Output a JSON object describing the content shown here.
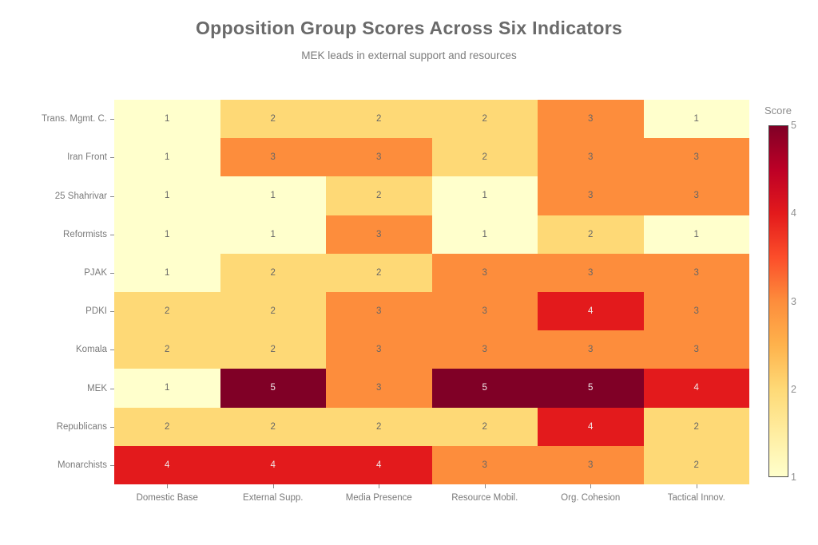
{
  "chart_data": {
    "type": "heatmap",
    "title": "Opposition Group Scores Across Six Indicators",
    "subtitle": "MEK leads in external support and resources",
    "columns": [
      "Domestic Base",
      "External Supp.",
      "Media Presence",
      "Resource Mobil.",
      "Org. Cohesion",
      "Tactical Innov."
    ],
    "rows": [
      "Trans. Mgmt. C.",
      "Iran Front",
      "25 Shahrivar",
      "Reformists",
      "PJAK",
      "PDKI",
      "Komala",
      "MEK",
      "Republicans",
      "Monarchists"
    ],
    "values": [
      [
        1,
        2,
        2,
        2,
        3,
        1
      ],
      [
        1,
        3,
        3,
        2,
        3,
        3
      ],
      [
        1,
        1,
        2,
        1,
        3,
        3
      ],
      [
        1,
        1,
        3,
        1,
        2,
        1
      ],
      [
        1,
        2,
        2,
        3,
        3,
        3
      ],
      [
        2,
        2,
        3,
        3,
        4,
        3
      ],
      [
        2,
        2,
        3,
        3,
        3,
        3
      ],
      [
        1,
        5,
        3,
        5,
        5,
        4
      ],
      [
        2,
        2,
        2,
        2,
        4,
        2
      ],
      [
        4,
        4,
        4,
        3,
        3,
        2
      ]
    ],
    "value_range": [
      1,
      5
    ],
    "grid": false,
    "annotations_shown": true,
    "colorbar": {
      "title": "Score",
      "ticks": [
        1,
        2,
        3,
        4,
        5
      ],
      "min": 1,
      "max": 5,
      "position": "right"
    },
    "score_colors": {
      "1": "#ffffcc",
      "2": "#fed976",
      "3": "#fd8d3c",
      "4": "#e31a1c",
      "5": "#800026"
    },
    "colormap_name": "YlOrRd",
    "colormap_stops": [
      "#ffffcc",
      "#ffeda0",
      "#fed976",
      "#feb24c",
      "#fd8d3c",
      "#fc4e2a",
      "#e31a1c",
      "#bd0026",
      "#800026"
    ],
    "light_text_threshold": 4
  }
}
